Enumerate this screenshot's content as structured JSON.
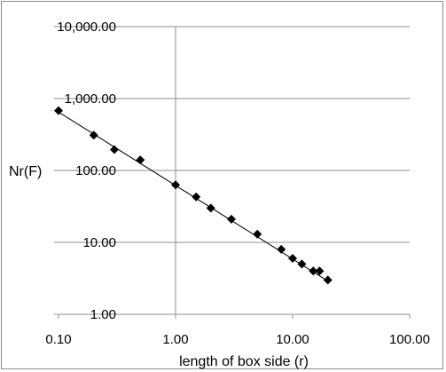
{
  "chart_data": {
    "type": "scatter",
    "title": "",
    "xlabel": "length of box side (r)",
    "ylabel": "Nr(F)",
    "x_scale": "log",
    "y_scale": "log",
    "xlim": [
      0.1,
      100
    ],
    "ylim": [
      1,
      10000
    ],
    "x_ticks": [
      0.1,
      1,
      10,
      100
    ],
    "x_tick_labels": [
      "0.10",
      "1.00",
      "10.00",
      "100.00"
    ],
    "y_ticks": [
      1,
      10,
      100,
      1000,
      10000
    ],
    "y_tick_labels": [
      "1.00",
      "10.00",
      "100.00",
      "1,000.00",
      "10,000.00"
    ],
    "grid": true,
    "legend": "none",
    "marker": "diamond",
    "marker_color": "#000000",
    "trendline": {
      "type": "power",
      "from": [
        0.1,
        650
      ],
      "to": [
        20,
        2.9
      ]
    },
    "series": [
      {
        "x": [
          0.1,
          0.2,
          0.3,
          0.5,
          1,
          1.5,
          2,
          3,
          5,
          8,
          10,
          12,
          15,
          17,
          20
        ],
        "y": [
          680,
          310,
          195,
          140,
          63,
          43,
          30,
          21,
          13,
          8,
          6,
          5,
          4,
          4,
          3
        ]
      }
    ]
  }
}
